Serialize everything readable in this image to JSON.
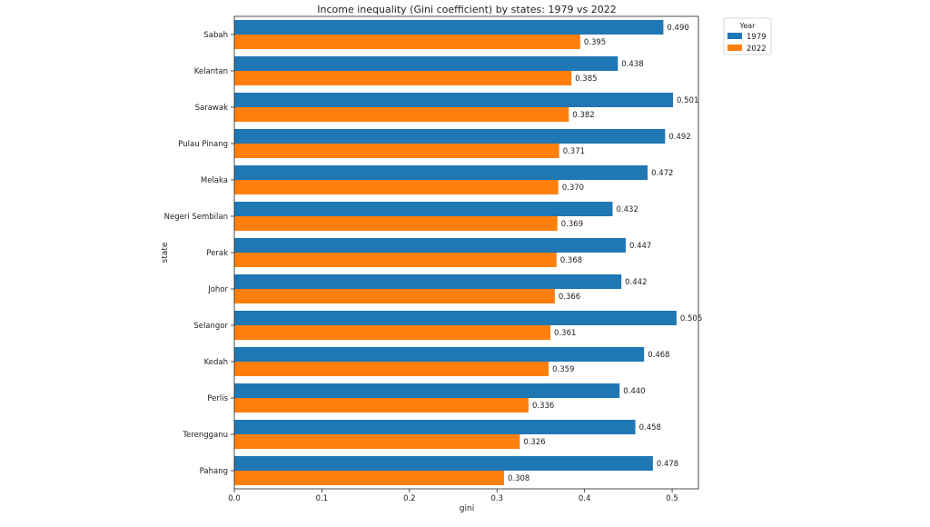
{
  "chart_data": {
    "type": "bar",
    "orientation": "horizontal",
    "title": "Income inequality (Gini coefficient) by states: 1979 vs 2022",
    "xlabel": "gini",
    "ylabel": "state",
    "xlim": [
      0,
      0.53
    ],
    "xticks": [
      "0.0",
      "0.1",
      "0.2",
      "0.3",
      "0.4",
      "0.5"
    ],
    "grid": false,
    "legend": {
      "title": "Year",
      "placement": "outside-top-right"
    },
    "categories": [
      "Sabah",
      "Kelantan",
      "Sarawak",
      "Pulau Pinang",
      "Melaka",
      "Negeri Sembilan",
      "Perak",
      "Johor",
      "Selangor",
      "Kedah",
      "Perlis",
      "Terengganu",
      "Pahang"
    ],
    "series": [
      {
        "name": "1979",
        "color": "#1f77b4",
        "values": [
          0.49,
          0.438,
          0.501,
          0.492,
          0.472,
          0.432,
          0.447,
          0.442,
          0.505,
          0.468,
          0.44,
          0.458,
          0.478
        ],
        "labels": [
          "0.490",
          "0.438",
          "0.501",
          "0.492",
          "0.472",
          "0.432",
          "0.447",
          "0.442",
          "0.505",
          "0.468",
          "0.440",
          "0.458",
          "0.478"
        ]
      },
      {
        "name": "2022",
        "color": "#ff7f0e",
        "values": [
          0.395,
          0.385,
          0.382,
          0.371,
          0.37,
          0.369,
          0.368,
          0.366,
          0.361,
          0.359,
          0.336,
          0.326,
          0.308
        ],
        "labels": [
          "0.395",
          "0.385",
          "0.382",
          "0.371",
          "0.370",
          "0.369",
          "0.368",
          "0.366",
          "0.361",
          "0.359",
          "0.336",
          "0.326",
          "0.308"
        ]
      }
    ]
  }
}
